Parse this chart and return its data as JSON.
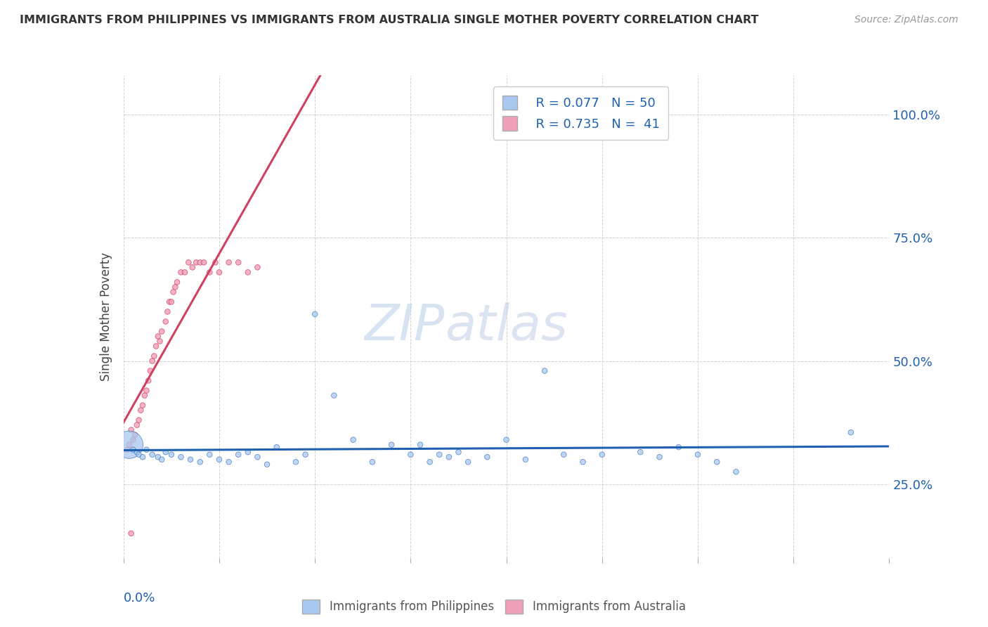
{
  "title": "IMMIGRANTS FROM PHILIPPINES VS IMMIGRANTS FROM AUSTRALIA SINGLE MOTHER POVERTY CORRELATION CHART",
  "source": "Source: ZipAtlas.com",
  "ylabel": "Single Mother Poverty",
  "xmin": 0.0,
  "xmax": 0.4,
  "ymin": 0.1,
  "ymax": 1.08,
  "y_ticks": [
    0.25,
    0.5,
    0.75,
    1.0
  ],
  "y_tick_labels": [
    "25.0%",
    "50.0%",
    "75.0%",
    "100.0%"
  ],
  "legend_r1": "R = 0.077",
  "legend_n1": "N = 50",
  "legend_r2": "R = 0.735",
  "legend_n2": "N =  41",
  "color_philippines": "#A8C8F0",
  "color_australia": "#F0A0B8",
  "color_philippines_line": "#2060B0",
  "color_australia_line": "#D04060",
  "watermark_zip": "ZIP",
  "watermark_atlas": "atlas",
  "philippines_x": [
    0.003,
    0.005,
    0.007,
    0.008,
    0.01,
    0.012,
    0.015,
    0.018,
    0.02,
    0.022,
    0.025,
    0.03,
    0.035,
    0.04,
    0.045,
    0.05,
    0.055,
    0.06,
    0.065,
    0.07,
    0.075,
    0.08,
    0.09,
    0.095,
    0.1,
    0.11,
    0.12,
    0.13,
    0.14,
    0.15,
    0.155,
    0.16,
    0.165,
    0.17,
    0.175,
    0.18,
    0.19,
    0.2,
    0.21,
    0.22,
    0.23,
    0.24,
    0.25,
    0.27,
    0.28,
    0.29,
    0.3,
    0.31,
    0.32,
    0.38
  ],
  "philippines_y": [
    0.33,
    0.32,
    0.315,
    0.31,
    0.305,
    0.32,
    0.31,
    0.305,
    0.3,
    0.315,
    0.31,
    0.305,
    0.3,
    0.295,
    0.31,
    0.3,
    0.295,
    0.31,
    0.315,
    0.305,
    0.29,
    0.325,
    0.295,
    0.31,
    0.595,
    0.43,
    0.34,
    0.295,
    0.33,
    0.31,
    0.33,
    0.295,
    0.31,
    0.305,
    0.315,
    0.295,
    0.305,
    0.34,
    0.3,
    0.48,
    0.31,
    0.295,
    0.31,
    0.315,
    0.305,
    0.325,
    0.31,
    0.295,
    0.275,
    0.355
  ],
  "philippines_size": [
    800,
    30,
    30,
    30,
    30,
    30,
    30,
    30,
    30,
    30,
    30,
    30,
    30,
    30,
    30,
    30,
    30,
    30,
    30,
    30,
    30,
    30,
    30,
    30,
    30,
    30,
    30,
    30,
    30,
    30,
    30,
    30,
    30,
    30,
    30,
    30,
    30,
    30,
    30,
    30,
    30,
    30,
    30,
    30,
    30,
    30,
    30,
    30,
    30,
    30
  ],
  "australia_x": [
    0.002,
    0.003,
    0.004,
    0.005,
    0.006,
    0.007,
    0.008,
    0.009,
    0.01,
    0.011,
    0.012,
    0.013,
    0.014,
    0.015,
    0.016,
    0.017,
    0.018,
    0.019,
    0.02,
    0.022,
    0.023,
    0.024,
    0.025,
    0.026,
    0.027,
    0.028,
    0.03,
    0.032,
    0.034,
    0.036,
    0.038,
    0.04,
    0.042,
    0.045,
    0.048,
    0.05,
    0.055,
    0.06,
    0.065,
    0.07,
    0.004
  ],
  "australia_y": [
    0.32,
    0.33,
    0.36,
    0.34,
    0.35,
    0.37,
    0.38,
    0.4,
    0.41,
    0.43,
    0.44,
    0.46,
    0.48,
    0.5,
    0.51,
    0.53,
    0.55,
    0.54,
    0.56,
    0.58,
    0.6,
    0.62,
    0.62,
    0.64,
    0.65,
    0.66,
    0.68,
    0.68,
    0.7,
    0.69,
    0.7,
    0.7,
    0.7,
    0.68,
    0.7,
    0.68,
    0.7,
    0.7,
    0.68,
    0.69,
    0.15
  ],
  "australia_size": [
    30,
    30,
    30,
    30,
    30,
    30,
    30,
    30,
    30,
    30,
    30,
    30,
    30,
    30,
    30,
    30,
    30,
    30,
    30,
    30,
    30,
    30,
    30,
    30,
    30,
    30,
    30,
    30,
    30,
    30,
    30,
    30,
    30,
    30,
    30,
    30,
    30,
    30,
    30,
    30,
    30
  ]
}
